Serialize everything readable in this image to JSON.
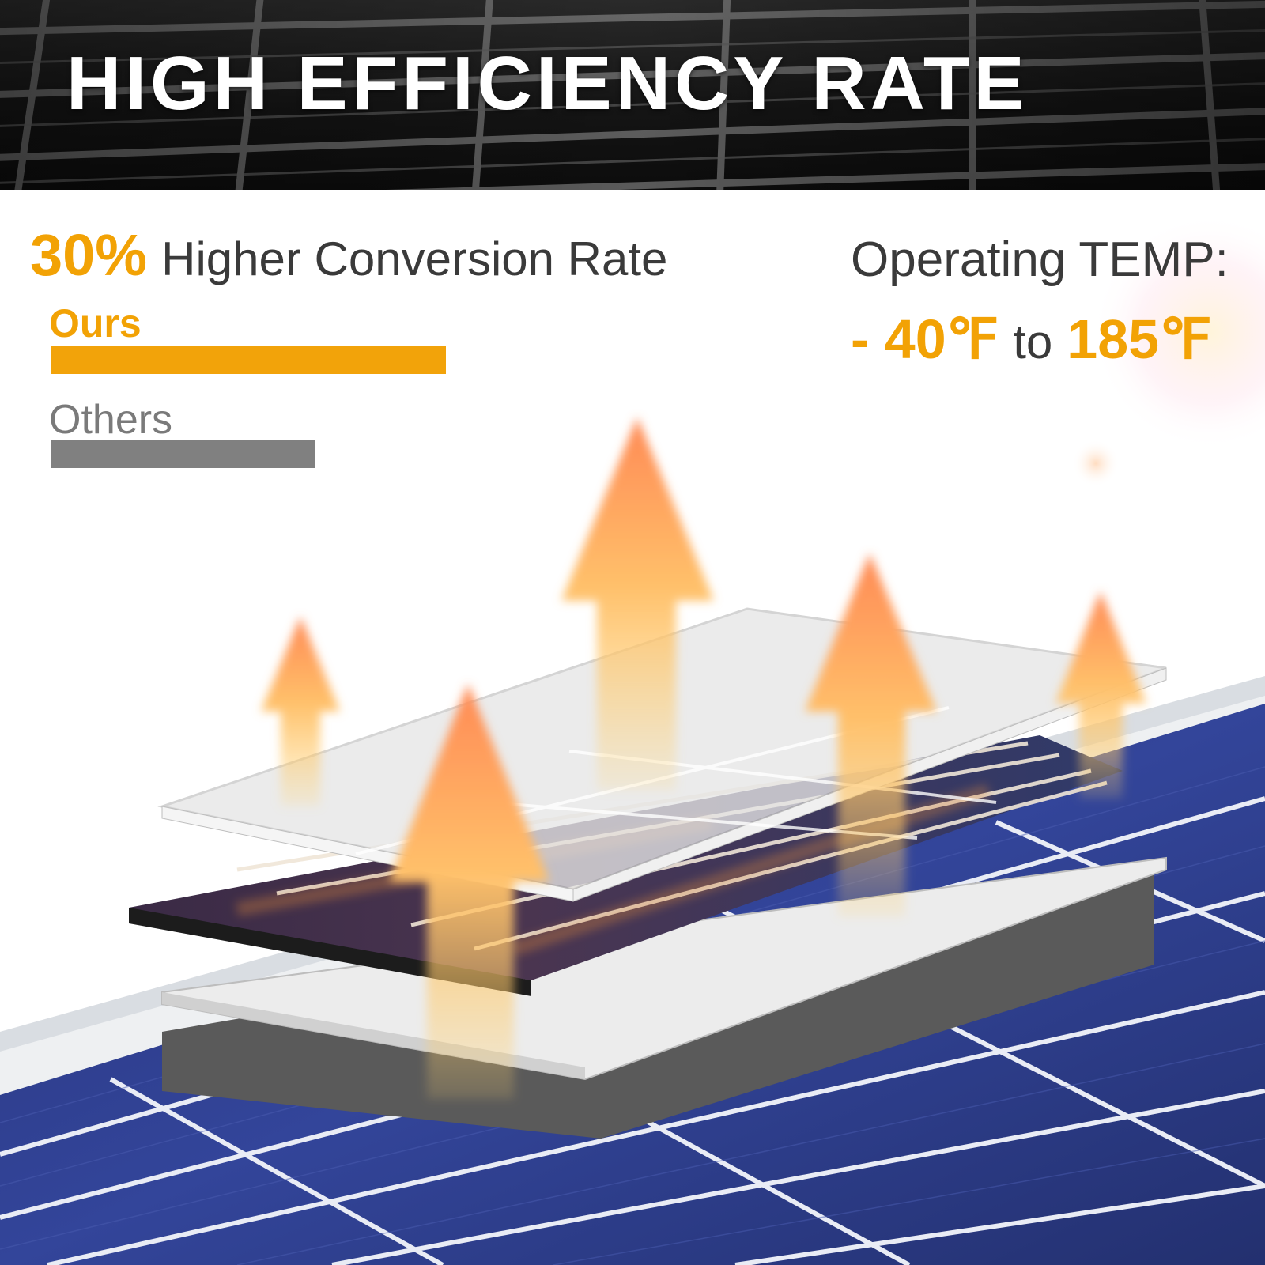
{
  "header": {
    "title": "HIGH EFFICIENCY RATE"
  },
  "conversion": {
    "percent": "30%",
    "label": "Higher Conversion Rate"
  },
  "comparison": {
    "ours_label": "Ours",
    "others_label": "Others"
  },
  "temperature": {
    "label": "Operating TEMP:",
    "low": "- 40℉",
    "connector": "to",
    "high": "185℉"
  },
  "colors": {
    "accent": "#f2a205",
    "text_dark": "#3a3a3a",
    "others_gray": "#808080",
    "panel_blue": "#2b3a86"
  }
}
